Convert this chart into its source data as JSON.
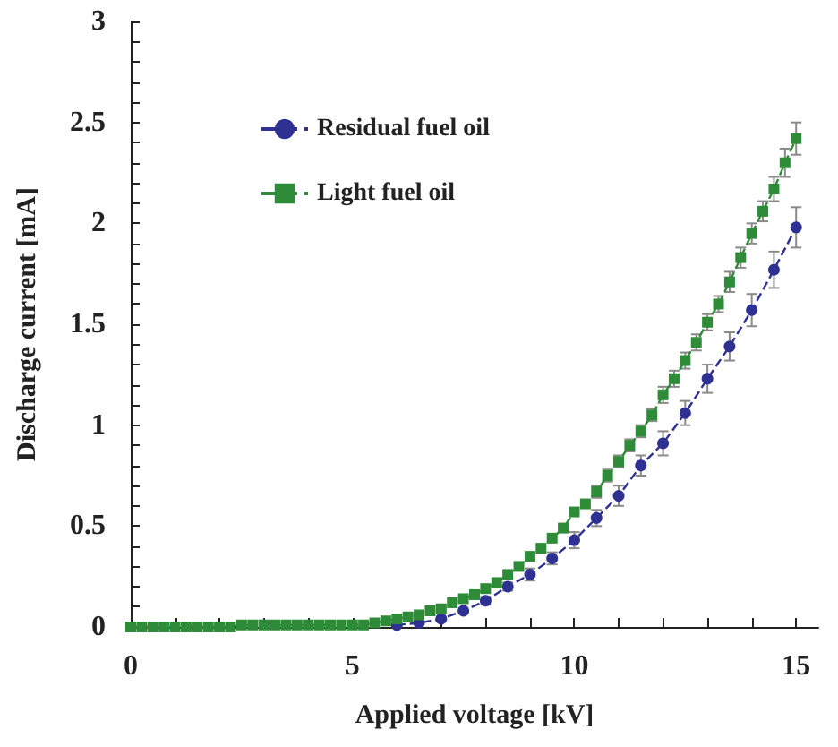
{
  "chart_data": {
    "type": "line",
    "xlabel": "Applied voltage [kV]",
    "ylabel": "Discharge current [mA]",
    "xlim": [
      0,
      15.5
    ],
    "xticks": [
      0,
      {
        "value": 1,
        "label": null
      },
      {
        "value": 2,
        "label": null
      },
      {
        "value": 3,
        "label": null
      },
      {
        "value": 4,
        "label": null
      },
      5,
      {
        "value": 6,
        "label": null
      },
      {
        "value": 7,
        "label": null
      },
      {
        "value": 8,
        "label": null
      },
      {
        "value": 9,
        "label": null
      },
      10,
      {
        "value": 11,
        "label": null
      },
      {
        "value": 12,
        "label": null
      },
      {
        "value": 13,
        "label": null
      },
      {
        "value": 14,
        "label": null
      },
      15
    ],
    "ylim": [
      0,
      3
    ],
    "yticks": [
      0,
      {
        "value": 0.1,
        "label": null
      },
      {
        "value": 0.2,
        "label": null
      },
      {
        "value": 0.3,
        "label": null
      },
      {
        "value": 0.4,
        "label": null
      },
      0.5,
      {
        "value": 0.6,
        "label": null
      },
      {
        "value": 0.7,
        "label": null
      },
      {
        "value": 0.8,
        "label": null
      },
      {
        "value": 0.9,
        "label": null
      },
      1,
      {
        "value": 1.1,
        "label": null
      },
      {
        "value": 1.2,
        "label": null
      },
      {
        "value": 1.3,
        "label": null
      },
      {
        "value": 1.4,
        "label": null
      },
      1.5,
      {
        "value": 1.6,
        "label": null
      },
      {
        "value": 1.7,
        "label": null
      },
      {
        "value": 1.8,
        "label": null
      },
      {
        "value": 1.9,
        "label": null
      },
      2,
      {
        "value": 2.1,
        "label": null
      },
      {
        "value": 2.2,
        "label": null
      },
      {
        "value": 2.3,
        "label": null
      },
      {
        "value": 2.4,
        "label": null
      },
      2.5,
      {
        "value": 2.6,
        "label": null
      },
      {
        "value": 2.7,
        "label": null
      },
      {
        "value": 2.8,
        "label": null
      },
      {
        "value": 2.9,
        "label": null
      },
      3
    ],
    "grid": false,
    "legend": "top left",
    "line_style": "dashed",
    "series": [
      {
        "name": "Residual fuel oil",
        "marker": "circle",
        "color": "#2e3192",
        "x": [
          6,
          6.5,
          7,
          7.5,
          8,
          8.5,
          9,
          9.5,
          10,
          10.5,
          11,
          11.5,
          12,
          12.5,
          13,
          13.5,
          14,
          14.5,
          15
        ],
        "values": [
          0.01,
          0.02,
          0.04,
          0.08,
          0.13,
          0.2,
          0.26,
          0.34,
          0.43,
          0.54,
          0.65,
          0.8,
          0.91,
          1.06,
          1.23,
          1.39,
          1.57,
          1.77,
          1.98
        ],
        "errors": [
          null,
          null,
          null,
          null,
          0.02,
          0.02,
          0.03,
          0.03,
          0.04,
          0.04,
          0.05,
          0.05,
          0.06,
          0.06,
          0.07,
          0.07,
          0.08,
          0.09,
          0.1
        ]
      },
      {
        "name": "Light fuel oil",
        "marker": "square",
        "color": "#2e8b38",
        "x": [
          0,
          0.25,
          0.5,
          0.75,
          1,
          1.25,
          1.5,
          1.75,
          2,
          2.25,
          2.5,
          2.75,
          3,
          3.25,
          3.5,
          3.75,
          4,
          4.25,
          4.5,
          4.75,
          5,
          5.25,
          5.5,
          5.75,
          6,
          6.25,
          6.5,
          6.75,
          7,
          7.25,
          7.5,
          7.75,
          8,
          8.25,
          8.5,
          8.75,
          9,
          9.25,
          9.5,
          9.75,
          10,
          10.25,
          10.5,
          10.75,
          11,
          11.25,
          11.5,
          11.75,
          12,
          12.25,
          12.5,
          12.75,
          13,
          13.25,
          13.5,
          13.75,
          14,
          14.25,
          14.5,
          14.75,
          15
        ],
        "values": [
          0,
          0,
          0,
          0,
          0,
          0,
          0,
          0,
          0,
          0,
          0.01,
          0.01,
          0.01,
          0.01,
          0.01,
          0.01,
          0.01,
          0.01,
          0.01,
          0.01,
          0.01,
          0.01,
          0.02,
          0.03,
          0.04,
          0.05,
          0.06,
          0.08,
          0.09,
          0.12,
          0.14,
          0.16,
          0.19,
          0.22,
          0.26,
          0.3,
          0.35,
          0.39,
          0.44,
          0.49,
          0.57,
          0.61,
          0.67,
          0.75,
          0.82,
          0.9,
          0.97,
          1.05,
          1.15,
          1.23,
          1.32,
          1.41,
          1.51,
          1.6,
          1.71,
          1.83,
          1.95,
          2.06,
          2.17,
          2.3,
          2.42
        ],
        "errors": [
          null,
          null,
          null,
          null,
          null,
          null,
          null,
          null,
          null,
          null,
          null,
          null,
          null,
          null,
          null,
          null,
          null,
          null,
          null,
          null,
          null,
          null,
          null,
          null,
          null,
          null,
          null,
          null,
          null,
          null,
          null,
          null,
          null,
          null,
          null,
          null,
          null,
          null,
          null,
          null,
          null,
          null,
          0.03,
          0.03,
          0.03,
          0.03,
          0.03,
          0.03,
          0.04,
          0.04,
          0.04,
          0.04,
          0.04,
          0.04,
          0.05,
          0.05,
          0.05,
          0.05,
          0.06,
          0.07,
          0.08
        ]
      }
    ]
  }
}
